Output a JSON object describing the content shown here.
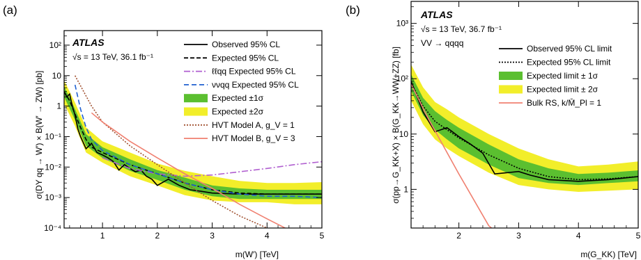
{
  "chart_data": [
    {
      "type": "line",
      "panel_label": "(a)",
      "experiment": "ATLAS",
      "energy_label": "√s = 13 TeV, 36.1 fb⁻¹",
      "xlabel": "m(W′) [TeV]",
      "ylabel": "σ(DY qq → W′) × B(W′ → ZW) [pb]",
      "xlim": [
        0.3,
        5
      ],
      "ylim": [
        0.0001,
        300
      ],
      "yscale": "log",
      "x_ticks": [
        1,
        2,
        3,
        4,
        5
      ],
      "y_ticks": [
        {
          "value": 0.0001,
          "label": "10⁻⁴"
        },
        {
          "value": 0.001,
          "label": "10⁻³"
        },
        {
          "value": 0.01,
          "label": "10⁻²"
        },
        {
          "value": 0.1,
          "label": "10⁻¹"
        },
        {
          "value": 1,
          "label": "1"
        },
        {
          "value": 10,
          "label": "10"
        },
        {
          "value": 100,
          "label": "10²"
        }
      ],
      "legend_position": "top-right",
      "bands": [
        {
          "name": "Expected ±2σ",
          "color": "#f2ee2a",
          "x": [
            0.3,
            0.5,
            0.7,
            1.0,
            1.5,
            2.0,
            2.5,
            3.0,
            3.5,
            4.0,
            4.5,
            5.0
          ],
          "lower": [
            1.2,
            0.22,
            0.03,
            0.014,
            0.005,
            0.0025,
            0.0012,
            0.0008,
            0.0007,
            0.0007,
            0.0006,
            0.0006
          ],
          "upper": [
            7.0,
            1.3,
            0.2,
            0.07,
            0.03,
            0.013,
            0.0075,
            0.005,
            0.0035,
            0.003,
            0.003,
            0.0032
          ]
        },
        {
          "name": "Expected ±1σ",
          "color": "#5bbf30",
          "x": [
            0.3,
            0.5,
            0.7,
            1.0,
            1.5,
            2.0,
            2.5,
            3.0,
            3.5,
            4.0,
            4.5,
            5.0
          ],
          "lower": [
            2.0,
            0.35,
            0.05,
            0.02,
            0.0075,
            0.0038,
            0.0018,
            0.0011,
            0.0009,
            0.0009,
            0.0009,
            0.0009
          ],
          "upper": [
            4.5,
            0.8,
            0.12,
            0.045,
            0.018,
            0.008,
            0.0045,
            0.0025,
            0.002,
            0.0018,
            0.0018,
            0.0018
          ]
        }
      ],
      "series": [
        {
          "name": "Observed 95% CL",
          "color": "#000000",
          "dash": "",
          "x": [
            0.3,
            0.35,
            0.4,
            0.45,
            0.5,
            0.55,
            0.6,
            0.7,
            0.8,
            0.9,
            1.0,
            1.1,
            1.2,
            1.3,
            1.4,
            1.5,
            1.6,
            1.7,
            1.8,
            1.9,
            2.0,
            2.2,
            2.4,
            2.6,
            2.8,
            3.0,
            3.5,
            4.0,
            4.5,
            5.0
          ],
          "y": [
            3.0,
            2.0,
            2.5,
            1.0,
            0.5,
            0.18,
            0.1,
            0.04,
            0.06,
            0.03,
            0.025,
            0.02,
            0.015,
            0.008,
            0.012,
            0.009,
            0.007,
            0.008,
            0.005,
            0.004,
            0.0025,
            0.004,
            0.0025,
            0.0018,
            0.0016,
            0.0014,
            0.0013,
            0.0013,
            0.0013,
            0.0013
          ]
        },
        {
          "name": "Expected 95% CL",
          "color": "#000000",
          "dash": "6,3",
          "x": [
            0.3,
            0.4,
            0.5,
            0.6,
            0.7,
            0.8,
            1.0,
            1.5,
            2.0,
            2.5,
            3.0,
            3.5,
            4.0,
            4.5,
            5.0
          ],
          "y": [
            3.0,
            1.5,
            0.55,
            0.2,
            0.08,
            0.045,
            0.03,
            0.012,
            0.006,
            0.003,
            0.0018,
            0.0014,
            0.0013,
            0.0013,
            0.0013
          ]
        },
        {
          "name": "ℓℓqq Expected 95% CL",
          "color": "#b05fd0",
          "dash": "9,3,2,3",
          "x": [
            1.0,
            1.5,
            2.0,
            2.5,
            3.0,
            3.5,
            4.0,
            4.5,
            5.0
          ],
          "y": [
            0.02,
            0.009,
            0.006,
            0.005,
            0.0055,
            0.007,
            0.009,
            0.012,
            0.015
          ]
        },
        {
          "name": "ννqq Expected 95% CL",
          "color": "#2060d0",
          "dash": "7,4",
          "x": [
            0.5,
            0.6,
            0.7,
            0.8,
            1.0,
            1.5,
            2.0,
            2.5,
            3.0,
            3.5,
            4.0,
            4.5,
            5.0
          ],
          "y": [
            5.0,
            0.8,
            0.2,
            0.08,
            0.035,
            0.012,
            0.006,
            0.003,
            0.0018,
            0.0013,
            0.0011,
            0.0011,
            0.001
          ]
        },
        {
          "name": "HVT Model A, g_V = 1",
          "color": "#a05030",
          "dash": "2,2",
          "x": [
            0.5,
            0.8,
            1.0,
            1.5,
            2.0,
            2.5,
            3.0,
            3.5,
            4.0,
            4.5
          ],
          "y": [
            10.0,
            1.0,
            0.3,
            0.05,
            0.012,
            0.003,
            0.0008,
            0.00025,
            0.0001,
            4e-05
          ]
        },
        {
          "name": "HVT Model B, g_V = 3",
          "color": "#f08070",
          "dash": "",
          "x": [
            0.8,
            1.0,
            1.5,
            2.0,
            2.5,
            3.0,
            3.5,
            4.0,
            4.5
          ],
          "y": [
            0.6,
            0.3,
            0.07,
            0.02,
            0.006,
            0.002,
            0.0006,
            0.0002,
            7e-05
          ]
        }
      ],
      "legend": [
        {
          "label": "Observed 95% CL",
          "kind": "line",
          "color": "#000000",
          "dash": ""
        },
        {
          "label": "Expected 95% CL",
          "kind": "line",
          "color": "#000000",
          "dash": "6,3"
        },
        {
          "label": "ℓℓqq Expected 95% CL",
          "kind": "line",
          "color": "#b05fd0",
          "dash": "9,3,2,3"
        },
        {
          "label": "ννqq Expected 95% CL",
          "kind": "line",
          "color": "#2060d0",
          "dash": "7,4"
        },
        {
          "label": "Expected ±1σ",
          "kind": "box",
          "color": "#5bbf30",
          "dash": ""
        },
        {
          "label": "Expected ±2σ",
          "kind": "box",
          "color": "#f2ee2a",
          "dash": ""
        },
        {
          "label": "HVT Model A, g_V = 1",
          "kind": "line",
          "color": "#a05030",
          "dash": "2,2"
        },
        {
          "label": "HVT Model B, g_V = 3",
          "kind": "line",
          "color": "#f08070",
          "dash": ""
        }
      ]
    },
    {
      "type": "line",
      "panel_label": "(b)",
      "experiment": "ATLAS",
      "energy_label": "√s = 13 TeV, 36.7 fb⁻¹",
      "channel_label": "VV → qqqq",
      "xlabel": "m(G_KK) [TeV]",
      "ylabel": "σ(pp→G_KK+X) × B(G_KK→WW+ZZ) [fb]",
      "xlim": [
        1.2,
        5
      ],
      "ylim": [
        0.2,
        2500
      ],
      "yscale": "log",
      "x_ticks": [
        2,
        3,
        4,
        5
      ],
      "y_ticks": [
        {
          "value": 1,
          "label": "1"
        },
        {
          "value": 10,
          "label": "10"
        },
        {
          "value": 100,
          "label": "10²"
        },
        {
          "value": 1000,
          "label": "10³"
        }
      ],
      "legend_position": "top-right",
      "bands": [
        {
          "name": "Expected limit ± 2σ",
          "color": "#f2ee2a",
          "x": [
            1.2,
            1.4,
            1.6,
            1.8,
            2.0,
            2.5,
            3.0,
            3.5,
            4.0,
            4.5,
            5.0
          ],
          "lower": [
            40,
            15,
            8,
            5.5,
            4.0,
            2.0,
            1.2,
            1.0,
            0.9,
            0.95,
            1.0
          ],
          "upper": [
            180,
            70,
            38,
            28,
            20,
            10,
            5.5,
            3.5,
            2.6,
            2.8,
            3.2
          ]
        },
        {
          "name": "Expected limit ± 1σ",
          "color": "#5bbf30",
          "x": [
            1.2,
            1.4,
            1.6,
            1.8,
            2.0,
            2.5,
            3.0,
            3.5,
            4.0,
            4.5,
            5.0
          ],
          "lower": [
            60,
            22,
            12,
            8,
            5.5,
            2.8,
            1.6,
            1.3,
            1.2,
            1.3,
            1.4
          ],
          "upper": [
            120,
            45,
            26,
            18,
            13,
            6.5,
            3.5,
            2.4,
            1.9,
            2.0,
            2.2
          ]
        }
      ],
      "series": [
        {
          "name": "Observed 95% CL limit",
          "color": "#000000",
          "dash": "",
          "x": [
            1.2,
            1.4,
            1.6,
            1.8,
            2.0,
            2.2,
            2.4,
            2.6,
            2.8,
            3.0,
            3.2,
            3.5,
            4.0,
            4.5,
            5.0
          ],
          "y": [
            90,
            25,
            11,
            13,
            9,
            6.5,
            4.5,
            1.9,
            2.0,
            2.1,
            1.8,
            1.5,
            1.4,
            1.5,
            1.7
          ]
        },
        {
          "name": "Expected 95% CL limit",
          "color": "#000000",
          "dash": "2,2",
          "x": [
            1.2,
            1.4,
            1.6,
            1.8,
            2.0,
            2.5,
            3.0,
            3.5,
            4.0,
            4.5,
            5.0
          ],
          "y": [
            85,
            32,
            17,
            12,
            8.5,
            4.2,
            2.4,
            1.7,
            1.5,
            1.55,
            1.7
          ]
        },
        {
          "name": "Bulk RS, k/M̄_Pl = 1",
          "color": "#f08070",
          "dash": "",
          "x": [
            1.2,
            1.5,
            2.0,
            2.5,
            2.6
          ],
          "y": [
            80,
            18,
            1.9,
            0.22,
            0.18
          ]
        }
      ],
      "legend": [
        {
          "label": "Observed 95% CL limit",
          "kind": "line",
          "color": "#000000",
          "dash": ""
        },
        {
          "label": "Expected 95% CL limit",
          "kind": "line",
          "color": "#000000",
          "dash": "2,2"
        },
        {
          "label": "Expected limit ± 1σ",
          "kind": "box",
          "color": "#5bbf30",
          "dash": ""
        },
        {
          "label": "Expected limit ± 2σ",
          "kind": "box",
          "color": "#f2ee2a",
          "dash": ""
        },
        {
          "label": "Bulk RS, k/M̄_Pl = 1",
          "kind": "line",
          "color": "#f08070",
          "dash": ""
        }
      ]
    }
  ]
}
